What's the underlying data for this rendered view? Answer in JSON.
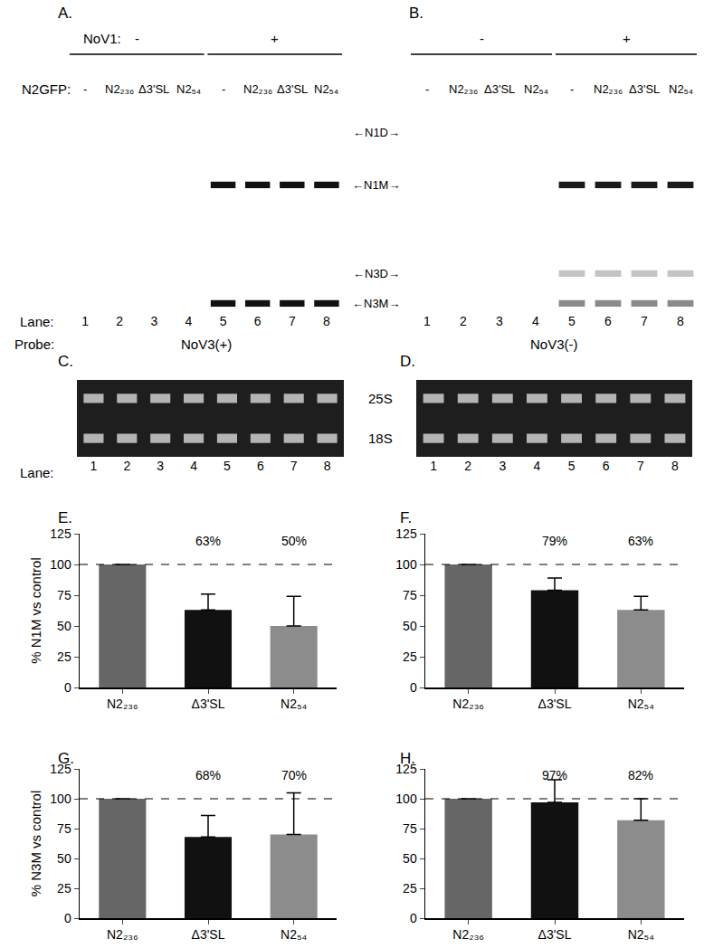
{
  "blots": [
    {
      "label": "A.",
      "nov1_label": "NoV1:",
      "n2gfp_label": "N2GFP:",
      "groups": [
        {
          "label": "-",
          "lanes": [
            1,
            2,
            3,
            4
          ]
        },
        {
          "label": "+",
          "lanes": [
            5,
            6,
            7,
            8
          ]
        }
      ],
      "lanes": [
        1,
        2,
        3,
        4,
        5,
        6,
        7,
        8
      ],
      "lane_conditions": [
        "-",
        "N2₂₃₆",
        "Δ3'SL",
        "N2₅₄",
        "-",
        "N2₂₃₆",
        "Δ3'SL",
        "N2₅₄"
      ],
      "lane_label": "Lane:",
      "probe_label": "Probe:",
      "probe": "NoV3(+)",
      "bands": [
        {
          "row": 1,
          "lanes": [
            5,
            6,
            7,
            8
          ],
          "color": "#111111"
        },
        {
          "row": 3,
          "lanes": [
            5,
            6,
            7,
            8
          ],
          "color": "#111111"
        }
      ]
    },
    {
      "label": "B.",
      "groups": [
        {
          "label": "-",
          "lanes": [
            1,
            2,
            3,
            4
          ]
        },
        {
          "label": "+",
          "lanes": [
            5,
            6,
            7,
            8
          ]
        }
      ],
      "lanes": [
        1,
        2,
        3,
        4,
        5,
        6,
        7,
        8
      ],
      "lane_conditions": [
        "-",
        "N2₂₃₆",
        "Δ3'SL",
        "N2₅₄",
        "-",
        "N2₂₃₆",
        "Δ3'SL",
        "N2₅₄"
      ],
      "probe": "NoV3(-)",
      "bands": [
        {
          "row": 1,
          "lanes": [
            5,
            6,
            7,
            8
          ],
          "color": "#1a1a1a"
        },
        {
          "row": 2,
          "lanes": [
            5,
            6,
            7,
            8
          ],
          "color": "#c4c4c4"
        },
        {
          "row": 3,
          "lanes": [
            5,
            6,
            7,
            8
          ],
          "color": "#8a8a8a"
        }
      ]
    }
  ],
  "band_labels": [
    "←N1D→",
    "←N1M→",
    "←N3D→",
    "←N3M→"
  ],
  "gels": [
    {
      "label": "C.",
      "lanes": [
        1,
        2,
        3,
        4,
        5,
        6,
        7,
        8
      ],
      "lane_label": "Lane:",
      "color": "#cfcfcf"
    },
    {
      "label": "D.",
      "lanes": [
        1,
        2,
        3,
        4,
        5,
        6,
        7,
        8
      ],
      "color": "#cfcfcf"
    }
  ],
  "gel_band_labels": [
    "25S",
    "18S"
  ],
  "chart_data": [
    {
      "type": "bar",
      "label": "E.",
      "ylabel": "% N1M vs control",
      "categories": [
        "N2₂₃₆",
        "Δ3'SL",
        "N2₅₄"
      ],
      "values": [
        100,
        63,
        50
      ],
      "errors": [
        null,
        13,
        24
      ],
      "value_labels": [
        null,
        "63%",
        "50%"
      ],
      "data_labels": true,
      "colors": [
        "#666666",
        "#111111",
        "#8c8c8c"
      ],
      "reference_line": 100,
      "ylim": [
        0,
        125
      ],
      "yticks": [
        0,
        25,
        50,
        75,
        100,
        125
      ]
    },
    {
      "type": "bar",
      "label": "F.",
      "categories": [
        "N2₂₃₆",
        "Δ3'SL",
        "N2₅₄"
      ],
      "values": [
        100,
        79,
        63
      ],
      "errors": [
        null,
        10,
        11
      ],
      "value_labels": [
        null,
        "79%",
        "63%"
      ],
      "data_labels": true,
      "colors": [
        "#666666",
        "#111111",
        "#8c8c8c"
      ],
      "reference_line": 100,
      "ylim": [
        0,
        125
      ],
      "yticks": [
        0,
        25,
        50,
        75,
        100,
        125
      ]
    },
    {
      "type": "bar",
      "label": "G.",
      "ylabel": "% N3M vs control",
      "categories": [
        "N2₂₃₆",
        "Δ3'SL",
        "N2₅₄"
      ],
      "values": [
        100,
        68,
        70
      ],
      "errors": [
        null,
        18,
        35
      ],
      "value_labels": [
        null,
        "68%",
        "70%"
      ],
      "data_labels": true,
      "colors": [
        "#666666",
        "#111111",
        "#8c8c8c"
      ],
      "reference_line": 100,
      "ylim": [
        0,
        125
      ],
      "yticks": [
        0,
        25,
        50,
        75,
        100,
        125
      ]
    },
    {
      "type": "bar",
      "label": "H.",
      "categories": [
        "N2₂₃₆",
        "Δ3'SL",
        "N2₅₄"
      ],
      "values": [
        100,
        97,
        82
      ],
      "errors": [
        null,
        19,
        18
      ],
      "value_labels": [
        null,
        "97%",
        "82%"
      ],
      "data_labels": true,
      "colors": [
        "#666666",
        "#111111",
        "#8c8c8c"
      ],
      "reference_line": 100,
      "ylim": [
        0,
        125
      ],
      "yticks": [
        0,
        25,
        50,
        75,
        100,
        125
      ]
    }
  ]
}
